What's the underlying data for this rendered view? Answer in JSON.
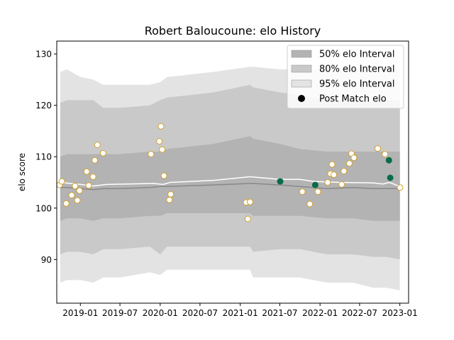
{
  "chart_data": {
    "type": "scatter",
    "title": "Robert Baloucoune: elo History",
    "xlabel": "",
    "ylabel": "elo score",
    "x_axis_type": "date",
    "xlim": [
      "2018-09-15",
      "2023-02-10"
    ],
    "ylim": [
      81.5,
      132.5
    ],
    "grid": false,
    "legend_position": "top-right",
    "x_ticks": [
      "2019-01",
      "2019-07",
      "2020-01",
      "2020-07",
      "2021-01",
      "2021-07",
      "2022-01",
      "2022-07",
      "2023-01"
    ],
    "y_ticks": [
      90,
      100,
      110,
      120,
      130
    ],
    "legend": [
      {
        "label": "50% elo Interval",
        "kind": "band",
        "color": "#b3b3b3"
      },
      {
        "label": "80% elo Interval",
        "kind": "band",
        "color": "#c9c9c9"
      },
      {
        "label": "95% elo Interval",
        "kind": "band",
        "color": "#e3e3e3"
      },
      {
        "label": "Post Match elo",
        "kind": "marker",
        "color": "#000000"
      }
    ],
    "colors": {
      "band50": "#b3b3b3",
      "band80": "#c9c9c9",
      "band95": "#e3e3e3",
      "median_line": "#888888",
      "mean_line": "#ffffff",
      "point_fill": "#ffffff",
      "point_edge": "#d4a02a",
      "highlight_fill": "#0a6b48"
    },
    "bands": [
      {
        "date": "2018-10-01",
        "lo95": 85.5,
        "lo80": 91.0,
        "lo50": 97.5,
        "median": 104.0,
        "hi50": 110.0,
        "hi80": 120.5,
        "hi95": 126.5
      },
      {
        "date": "2018-11-01",
        "lo95": 86.0,
        "lo80": 91.5,
        "lo50": 98.0,
        "median": 104.0,
        "hi50": 110.5,
        "hi80": 121.0,
        "hi95": 127.0
      },
      {
        "date": "2019-01-01",
        "lo95": 86.0,
        "lo80": 91.5,
        "lo50": 98.0,
        "median": 103.8,
        "hi50": 110.5,
        "hi80": 121.0,
        "hi95": 125.5
      },
      {
        "date": "2019-03-01",
        "lo95": 85.5,
        "lo80": 91.0,
        "lo50": 97.5,
        "median": 103.6,
        "hi50": 110.5,
        "hi80": 121.0,
        "hi95": 125.0
      },
      {
        "date": "2019-04-15",
        "lo95": 86.5,
        "lo80": 92.0,
        "lo50": 98.0,
        "median": 103.8,
        "hi50": 110.5,
        "hi80": 119.5,
        "hi95": 124.0
      },
      {
        "date": "2019-07-01",
        "lo95": 86.5,
        "lo80": 92.0,
        "lo50": 98.0,
        "median": 103.8,
        "hi50": 110.5,
        "hi80": 119.5,
        "hi95": 124.0
      },
      {
        "date": "2019-11-15",
        "lo95": 87.5,
        "lo80": 92.5,
        "lo50": 98.5,
        "median": 104.0,
        "hi50": 111.0,
        "hi80": 120.0,
        "hi95": 124.0
      },
      {
        "date": "2020-01-01",
        "lo95": 87.0,
        "lo80": 91.0,
        "lo50": 98.5,
        "median": 104.2,
        "hi50": 111.0,
        "hi80": 121.0,
        "hi95": 124.5
      },
      {
        "date": "2020-02-01",
        "lo95": 88.0,
        "lo80": 92.5,
        "lo50": 99.0,
        "median": 104.2,
        "hi50": 111.5,
        "hi80": 121.5,
        "hi95": 125.5
      },
      {
        "date": "2020-09-01",
        "lo95": 88.0,
        "lo80": 92.5,
        "lo50": 99.0,
        "median": 104.5,
        "hi50": 112.5,
        "hi80": 122.5,
        "hi95": 126.5
      },
      {
        "date": "2021-02-15",
        "lo95": 88.0,
        "lo80": 92.5,
        "lo50": 99.0,
        "median": 104.8,
        "hi50": 114.0,
        "hi80": 124.0,
        "hi95": 127.5
      },
      {
        "date": "2021-03-01",
        "lo95": 86.5,
        "lo80": 91.5,
        "lo50": 98.5,
        "median": 104.8,
        "hi50": 113.5,
        "hi80": 123.5,
        "hi95": 127.5
      },
      {
        "date": "2021-07-01",
        "lo95": 86.5,
        "lo80": 92.0,
        "lo50": 98.5,
        "median": 104.5,
        "hi50": 112.5,
        "hi80": 122.5,
        "hi95": 127.0
      },
      {
        "date": "2021-10-01",
        "lo95": 86.5,
        "lo80": 92.0,
        "lo50": 98.5,
        "median": 104.2,
        "hi50": 111.5,
        "hi80": 122.0,
        "hi95": 127.0
      },
      {
        "date": "2022-02-01",
        "lo95": 85.5,
        "lo80": 91.0,
        "lo50": 98.0,
        "median": 103.8,
        "hi50": 111.0,
        "hi80": 121.0,
        "hi95": 127.0
      },
      {
        "date": "2022-06-01",
        "lo95": 85.5,
        "lo80": 91.0,
        "lo50": 98.0,
        "median": 104.0,
        "hi50": 111.0,
        "hi80": 121.0,
        "hi95": 127.0
      },
      {
        "date": "2022-09-01",
        "lo95": 84.5,
        "lo80": 90.5,
        "lo50": 97.5,
        "median": 103.8,
        "hi50": 111.0,
        "hi80": 121.0,
        "hi95": 127.0
      },
      {
        "date": "2022-11-01",
        "lo95": 84.5,
        "lo80": 90.5,
        "lo50": 97.5,
        "median": 103.8,
        "hi50": 111.0,
        "hi80": 121.0,
        "hi95": 127.0
      },
      {
        "date": "2023-01-01",
        "lo95": 84.0,
        "lo80": 90.0,
        "lo50": 97.5,
        "median": 103.8,
        "hi50": 111.0,
        "hi80": 121.0,
        "hi95": 127.0
      }
    ],
    "mean_line": [
      {
        "date": "2018-10-01",
        "y": 105.0
      },
      {
        "date": "2019-01-01",
        "y": 104.6
      },
      {
        "date": "2019-03-01",
        "y": 104.3
      },
      {
        "date": "2019-05-01",
        "y": 104.6
      },
      {
        "date": "2019-12-01",
        "y": 104.8
      },
      {
        "date": "2020-01-15",
        "y": 104.6
      },
      {
        "date": "2020-02-15",
        "y": 105.0
      },
      {
        "date": "2020-09-01",
        "y": 105.4
      },
      {
        "date": "2021-02-15",
        "y": 106.1
      },
      {
        "date": "2021-07-01",
        "y": 105.6
      },
      {
        "date": "2021-10-01",
        "y": 105.6
      },
      {
        "date": "2021-12-01",
        "y": 105.2
      },
      {
        "date": "2022-04-01",
        "y": 105.0
      },
      {
        "date": "2022-09-01",
        "y": 104.9
      },
      {
        "date": "2022-10-15",
        "y": 104.7
      },
      {
        "date": "2022-11-15",
        "y": 105.0
      },
      {
        "date": "2023-01-01",
        "y": 104.2
      }
    ],
    "points": [
      {
        "date": "2018-09-28",
        "elo": 104.5,
        "highlight": false
      },
      {
        "date": "2018-10-08",
        "elo": 105.2,
        "highlight": false
      },
      {
        "date": "2018-10-28",
        "elo": 100.9,
        "highlight": false
      },
      {
        "date": "2018-11-22",
        "elo": 102.5,
        "highlight": false
      },
      {
        "date": "2018-12-08",
        "elo": 104.3,
        "highlight": false
      },
      {
        "date": "2018-12-18",
        "elo": 101.5,
        "highlight": false
      },
      {
        "date": "2018-12-28",
        "elo": 103.4,
        "highlight": false
      },
      {
        "date": "2019-01-30",
        "elo": 107.1,
        "highlight": false
      },
      {
        "date": "2019-02-08",
        "elo": 104.4,
        "highlight": false
      },
      {
        "date": "2019-02-28",
        "elo": 106.1,
        "highlight": false
      },
      {
        "date": "2019-03-08",
        "elo": 109.3,
        "highlight": false
      },
      {
        "date": "2019-03-20",
        "elo": 112.3,
        "highlight": false
      },
      {
        "date": "2019-04-15",
        "elo": 110.7,
        "highlight": false
      },
      {
        "date": "2019-11-20",
        "elo": 110.5,
        "highlight": false
      },
      {
        "date": "2019-12-28",
        "elo": 113.0,
        "highlight": false
      },
      {
        "date": "2020-01-05",
        "elo": 115.9,
        "highlight": false
      },
      {
        "date": "2020-01-10",
        "elo": 111.4,
        "highlight": false
      },
      {
        "date": "2020-01-18",
        "elo": 106.3,
        "highlight": false
      },
      {
        "date": "2020-02-12",
        "elo": 101.6,
        "highlight": false
      },
      {
        "date": "2020-02-18",
        "elo": 102.7,
        "highlight": false
      },
      {
        "date": "2021-01-28",
        "elo": 101.1,
        "highlight": false
      },
      {
        "date": "2021-02-05",
        "elo": 97.9,
        "highlight": false
      },
      {
        "date": "2021-02-15",
        "elo": 101.2,
        "highlight": false
      },
      {
        "date": "2021-07-03",
        "elo": 105.2,
        "highlight": true
      },
      {
        "date": "2021-10-12",
        "elo": 103.2,
        "highlight": false
      },
      {
        "date": "2021-11-15",
        "elo": 100.8,
        "highlight": false
      },
      {
        "date": "2021-12-10",
        "elo": 104.5,
        "highlight": true
      },
      {
        "date": "2021-12-22",
        "elo": 103.2,
        "highlight": false
      },
      {
        "date": "2022-02-05",
        "elo": 105.0,
        "highlight": false
      },
      {
        "date": "2022-02-18",
        "elo": 106.7,
        "highlight": false
      },
      {
        "date": "2022-02-25",
        "elo": 108.5,
        "highlight": false
      },
      {
        "date": "2022-03-05",
        "elo": 106.5,
        "highlight": false
      },
      {
        "date": "2022-04-10",
        "elo": 104.6,
        "highlight": false
      },
      {
        "date": "2022-04-20",
        "elo": 107.2,
        "highlight": false
      },
      {
        "date": "2022-05-15",
        "elo": 108.7,
        "highlight": false
      },
      {
        "date": "2022-05-25",
        "elo": 110.6,
        "highlight": false
      },
      {
        "date": "2022-06-05",
        "elo": 109.8,
        "highlight": false
      },
      {
        "date": "2022-09-22",
        "elo": 111.6,
        "highlight": false
      },
      {
        "date": "2022-10-25",
        "elo": 110.5,
        "highlight": false
      },
      {
        "date": "2022-11-12",
        "elo": 109.3,
        "highlight": true
      },
      {
        "date": "2022-11-18",
        "elo": 105.9,
        "highlight": true
      },
      {
        "date": "2023-01-02",
        "elo": 104.0,
        "highlight": false
      }
    ]
  }
}
